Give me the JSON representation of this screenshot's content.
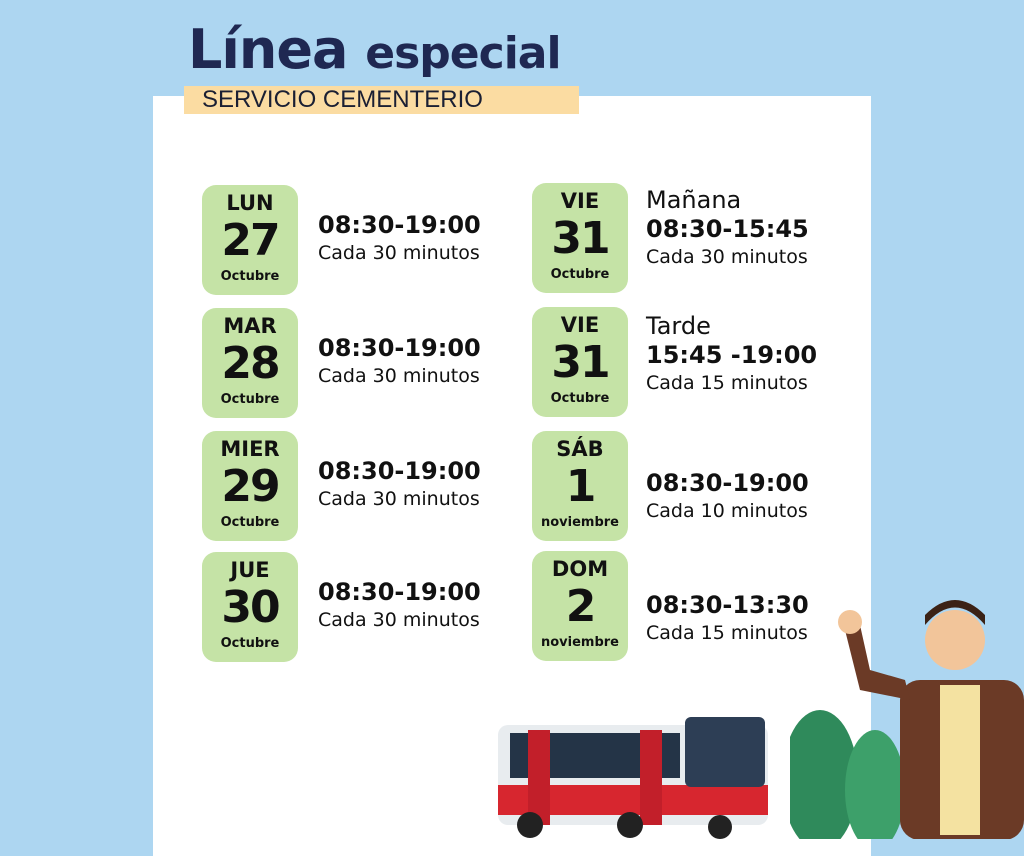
{
  "header": {
    "title_main": "Línea",
    "title_second": "especial",
    "subtitle": "SERVICIO CEMENTERIO"
  },
  "colors": {
    "background": "#add6f1",
    "title": "#1f2852",
    "highlight": "#fbdca2",
    "card": "#c5e3a6"
  },
  "schedule": [
    {
      "day": "LUN",
      "date": "27",
      "month": "Octubre",
      "label": "",
      "hours": "08:30-19:00",
      "frequency": "Cada 30 minutos"
    },
    {
      "day": "MAR",
      "date": "28",
      "month": "Octubre",
      "label": "",
      "hours": "08:30-19:00",
      "frequency": "Cada 30 minutos"
    },
    {
      "day": "MIER",
      "date": "29",
      "month": "Octubre",
      "label": "",
      "hours": "08:30-19:00",
      "frequency": "Cada 30 minutos"
    },
    {
      "day": "JUE",
      "date": "30",
      "month": "Octubre",
      "label": "",
      "hours": "08:30-19:00",
      "frequency": "Cada 30 minutos"
    },
    {
      "day": "VIE",
      "date": "31",
      "month": "Octubre",
      "label": "Mañana",
      "hours": "08:30-15:45",
      "frequency": "Cada 30 minutos"
    },
    {
      "day": "VIE",
      "date": "31",
      "month": "Octubre",
      "label": "Tarde",
      "hours": "15:45 -19:00",
      "frequency": "Cada 15 minutos"
    },
    {
      "day": "SÁB",
      "date": "1",
      "month": "noviembre",
      "label": "",
      "hours": "08:30-19:00",
      "frequency": "Cada 10 minutos"
    },
    {
      "day": "DOM",
      "date": "2",
      "month": "noviembre",
      "label": "",
      "hours": "08:30-13:30",
      "frequency": "Cada 15 minutos"
    }
  ]
}
